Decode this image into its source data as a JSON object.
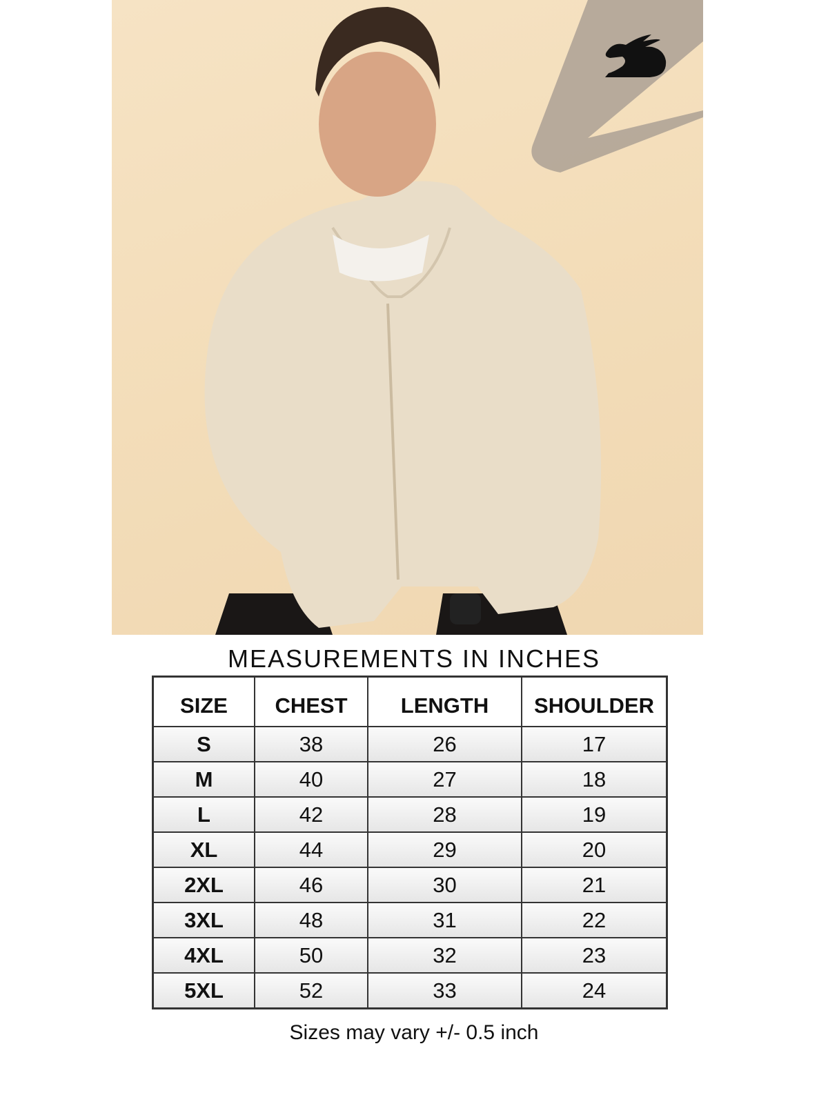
{
  "brand": {
    "logo": "rabbit-logo"
  },
  "photo": {
    "subject": "model wearing beige zip hoodie"
  },
  "table": {
    "title": "MEASUREMENTS IN INCHES",
    "headers": [
      "SIZE",
      "CHEST",
      "LENGTH",
      "SHOULDER"
    ],
    "rows": [
      [
        "S",
        "38",
        "26",
        "17"
      ],
      [
        "M",
        "40",
        "27",
        "18"
      ],
      [
        "L",
        "42",
        "28",
        "19"
      ],
      [
        "XL",
        "44",
        "29",
        "20"
      ],
      [
        "2XL",
        "46",
        "30",
        "21"
      ],
      [
        "3XL",
        "48",
        "31",
        "22"
      ],
      [
        "4XL",
        "50",
        "32",
        "23"
      ],
      [
        "5XL",
        "52",
        "33",
        "24"
      ]
    ]
  },
  "note": "Sizes may vary +/- 0.5 inch",
  "colors": {
    "background": "#f3ddb9",
    "hoodie": "#e9ddc8",
    "border": "#333333"
  }
}
